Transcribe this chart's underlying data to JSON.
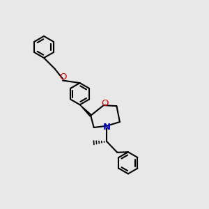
{
  "bg_color": "#e8e8e8",
  "bond_color": "#000000",
  "N_color": "#0000cc",
  "O_color": "#cc0000",
  "lw": 1.5,
  "xlim": [
    0,
    10
  ],
  "ylim": [
    0,
    10
  ],
  "figsize": [
    3.0,
    3.0
  ],
  "dpi": 100
}
